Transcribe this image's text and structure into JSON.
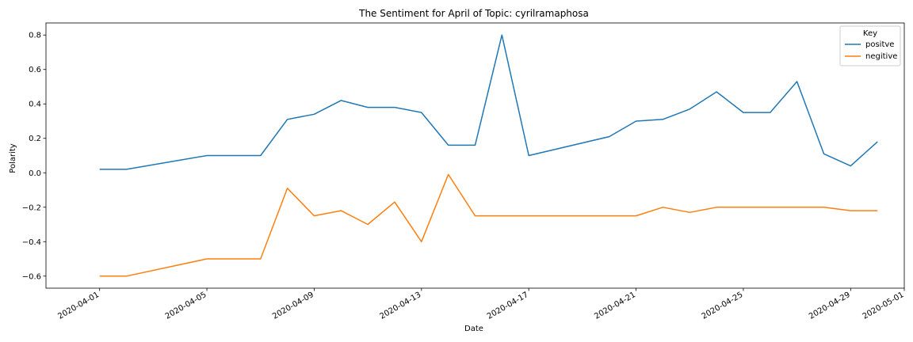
{
  "chart_data": {
    "type": "line",
    "title": "The Sentiment for April of Topic: cyrilramaphosa",
    "xlabel": "Date",
    "ylabel": "Polarity",
    "x": [
      "2020-04-01",
      "2020-04-02",
      "2020-04-05",
      "2020-04-07",
      "2020-04-08",
      "2020-04-09",
      "2020-04-10",
      "2020-04-11",
      "2020-04-12",
      "2020-04-13",
      "2020-04-14",
      "2020-04-15",
      "2020-04-16",
      "2020-04-17",
      "2020-04-20",
      "2020-04-21",
      "2020-04-22",
      "2020-04-23",
      "2020-04-24",
      "2020-04-25",
      "2020-04-26",
      "2020-04-27",
      "2020-04-28",
      "2020-04-29",
      "2020-04-30"
    ],
    "series": [
      {
        "name": "positve",
        "color": "#1f77b4",
        "values": [
          0.02,
          0.02,
          0.1,
          0.1,
          0.31,
          0.34,
          0.42,
          0.38,
          0.38,
          0.35,
          0.16,
          0.16,
          0.8,
          0.1,
          0.21,
          0.3,
          0.31,
          0.37,
          0.47,
          0.35,
          0.35,
          0.53,
          0.11,
          0.04,
          0.18
        ]
      },
      {
        "name": "negitive",
        "color": "#ff7f0e",
        "values": [
          -0.6,
          -0.6,
          -0.5,
          -0.5,
          -0.09,
          -0.25,
          -0.22,
          -0.3,
          -0.17,
          -0.4,
          -0.01,
          -0.25,
          -0.25,
          -0.25,
          -0.25,
          -0.25,
          -0.2,
          -0.23,
          -0.2,
          -0.2,
          -0.2,
          -0.2,
          -0.2,
          -0.22,
          -0.22
        ]
      }
    ],
    "xlim": [
      "2020-03-30",
      "2020-05-01"
    ],
    "ylim": [
      -0.67,
      0.87
    ],
    "yticks": [
      -0.6,
      -0.4,
      -0.2,
      0.0,
      0.2,
      0.4,
      0.6,
      0.8
    ],
    "ytick_labels": [
      "−0.6",
      "−0.4",
      "−0.2",
      "0.0",
      "0.2",
      "0.4",
      "0.6",
      "0.8"
    ],
    "xticks": [
      "2020-04-01",
      "2020-04-05",
      "2020-04-09",
      "2020-04-13",
      "2020-04-17",
      "2020-04-21",
      "2020-04-25",
      "2020-04-29",
      "2020-05-01"
    ],
    "grid": false,
    "legend": {
      "title": "Key",
      "position": "top-right"
    }
  }
}
